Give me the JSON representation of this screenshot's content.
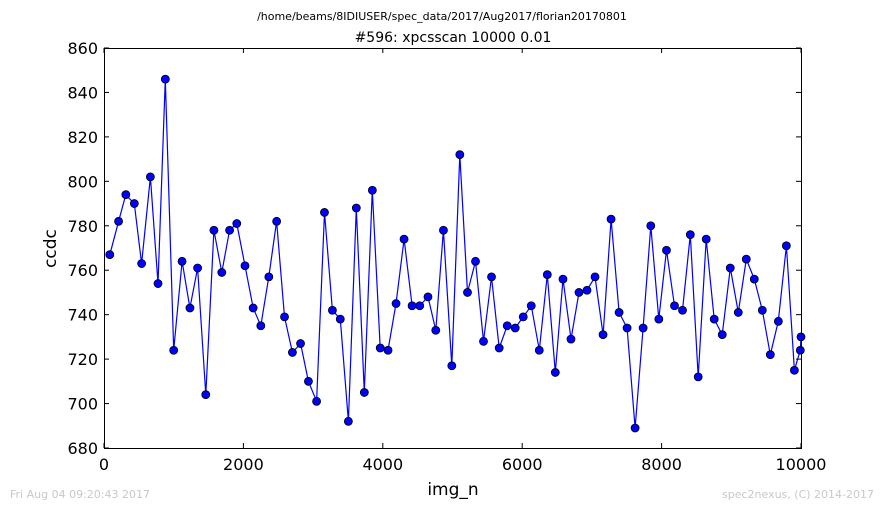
{
  "header": {
    "suptitle": "/home/beams/8IDIUSER/spec_data/2017/Aug2017/florian20170801"
  },
  "footer": {
    "left": "Fri Aug 04 09:20:43 2017",
    "right": "spec2nexus, (C) 2014-2017"
  },
  "chart_data": {
    "type": "line",
    "title": "#596: xpcsscan 10000 0.01",
    "xlabel": "img_n",
    "ylabel": "ccdc",
    "xlim": [
      0,
      10000
    ],
    "ylim": [
      680,
      860
    ],
    "xticks": [
      0,
      2000,
      4000,
      6000,
      8000,
      10000
    ],
    "yticks": [
      680,
      700,
      720,
      740,
      760,
      780,
      800,
      820,
      840,
      860
    ],
    "grid": false,
    "line_color": "#0000ff",
    "marker_color": "#0000ff",
    "series": [
      {
        "x": [
          83,
          209,
          313,
          435,
          540,
          665,
          775,
          880,
          1000,
          1120,
          1233,
          1343,
          1460,
          1577,
          1690,
          1802,
          1905,
          2023,
          2140,
          2250,
          2365,
          2477,
          2590,
          2703,
          2820,
          2933,
          3050,
          3163,
          3277,
          3390,
          3506,
          3620,
          3735,
          3850,
          3963,
          4075,
          4190,
          4305,
          4420,
          4530,
          4648,
          4760,
          4870,
          4990,
          5105,
          5215,
          5330,
          5445,
          5560,
          5670,
          5785,
          5900,
          6015,
          6130,
          6245,
          6360,
          6475,
          6585,
          6700,
          6815,
          6930,
          7045,
          7160,
          7275,
          7390,
          7505,
          7620,
          7735,
          7845,
          7960,
          8070,
          8185,
          8300,
          8412,
          8525,
          8640,
          8755,
          8870,
          8985,
          9100,
          9215,
          9330,
          9445,
          9560,
          9675,
          9790,
          9905,
          9990,
          10000
        ],
        "values": [
          767,
          782,
          794,
          790,
          763,
          802,
          754,
          846,
          724,
          764,
          743,
          761,
          704,
          778,
          759,
          778,
          781,
          762,
          743,
          735,
          757,
          782,
          739,
          723,
          727,
          710,
          701,
          786,
          742,
          738,
          692,
          788,
          705,
          796,
          725,
          724,
          745,
          774,
          744,
          744,
          748,
          733,
          778,
          717,
          812,
          750,
          764,
          728,
          757,
          725,
          735,
          734,
          739,
          744,
          724,
          758,
          714,
          756,
          729,
          750,
          751,
          757,
          731,
          783,
          741,
          734,
          689,
          734,
          780,
          738,
          769,
          744,
          742,
          776,
          712,
          774,
          738,
          731,
          761,
          741,
          765,
          756,
          742,
          722,
          737,
          771,
          715,
          724,
          730
        ]
      }
    ]
  }
}
